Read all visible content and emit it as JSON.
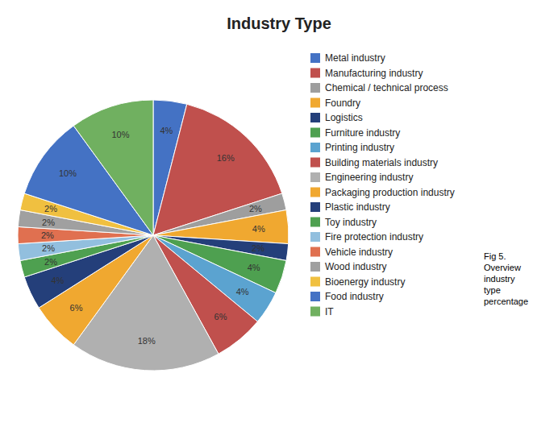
{
  "chart_data": {
    "type": "pie",
    "title": "Industry Type",
    "categories": [
      "Metal industry",
      "Manufacturing industry",
      "Chemical / technical process",
      "Foundry",
      "Logistics",
      "Furniture industry",
      "Printing industry",
      "Building materials industry",
      "Engineering industry",
      "Packaging production industry",
      "Plastic industry",
      "Toy industry",
      "Fire protection industry",
      "Vehicle industry",
      "Wood industry",
      "Bioenergy industry",
      "Food industry",
      "IT"
    ],
    "values": [
      4,
      16,
      2,
      4,
      2,
      4,
      4,
      6,
      18,
      6,
      4,
      2,
      2,
      2,
      2,
      2,
      10,
      10
    ],
    "value_labels": [
      "4%",
      "16%",
      "2%",
      "4%",
      "2%",
      "4%",
      "4%",
      "6%",
      "18%",
      "6%",
      "4%",
      "2%",
      "2%",
      "2%",
      "2%",
      "2%",
      "10%",
      "10%"
    ],
    "colors": [
      "#4472C4",
      "#C0504D",
      "#9E9E9E",
      "#F0A830",
      "#243F7A",
      "#4EA050",
      "#5BA3D0",
      "#C0504D",
      "#B0B0B0",
      "#F0A830",
      "#243F7A",
      "#4EA050",
      "#92BFDE",
      "#E07050",
      "#A0A0A0",
      "#F0C040",
      "#4472C4",
      "#70B060"
    ],
    "data_labels": true,
    "legend": "right",
    "annotations": [
      "Fig 5.",
      "Overview",
      "industry",
      "type",
      "percentage"
    ]
  }
}
